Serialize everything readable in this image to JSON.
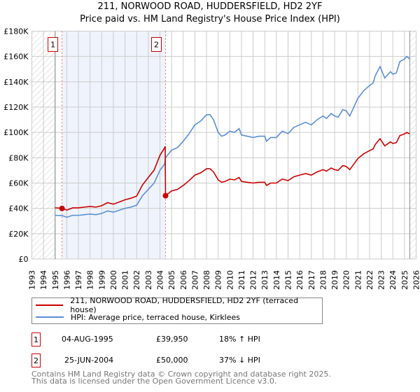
{
  "header": {
    "title": "211, NORWOOD ROAD, HUDDERSFIELD, HD2 2YF",
    "subtitle": "Price paid vs. HM Land Registry's House Price Index (HPI)"
  },
  "chart_data": {
    "type": "line",
    "title": "211, NORWOOD ROAD, HUDDERSFIELD, HD2 2YF",
    "subtitle": "Price paid vs. HM Land Registry's House Price Index (HPI)",
    "xlim": [
      1993,
      2026
    ],
    "ylim": [
      0,
      180000
    ],
    "x_ticks": [
      "1993",
      "1994",
      "1995",
      "1996",
      "1997",
      "1998",
      "1999",
      "2000",
      "2001",
      "2002",
      "2003",
      "2004",
      "2005",
      "2006",
      "2007",
      "2008",
      "2009",
      "2010",
      "2011",
      "2012",
      "2013",
      "2014",
      "2015",
      "2016",
      "2017",
      "2018",
      "2019",
      "2020",
      "2021",
      "2022",
      "2023",
      "2024",
      "2025",
      "2026"
    ],
    "y_ticks": [
      {
        "v": 0,
        "label": "£0"
      },
      {
        "v": 20000,
        "label": "£20K"
      },
      {
        "v": 40000,
        "label": "£40K"
      },
      {
        "v": 60000,
        "label": "£60K"
      },
      {
        "v": 80000,
        "label": "£80K"
      },
      {
        "v": 100000,
        "label": "£100K"
      },
      {
        "v": 120000,
        "label": "£120K"
      },
      {
        "v": 140000,
        "label": "£140K"
      },
      {
        "v": 160000,
        "label": "£160K"
      },
      {
        "v": 180000,
        "label": "£180K"
      }
    ],
    "grid": true,
    "shaded_ranges": [
      [
        1995.59,
        2004.48
      ]
    ],
    "hatched_ranges": [
      [
        1993,
        1995
      ],
      [
        2025.45,
        2026
      ]
    ],
    "series": [
      {
        "name": "211, NORWOOD ROAD, HUDDERSFIELD, HD2 2YF (terraced house)",
        "color": "#cc0000",
        "points": [
          [
            1995,
            40.4
          ],
          [
            1995.6,
            40.1
          ],
          [
            1996,
            38.6
          ],
          [
            1996.5,
            40.4
          ],
          [
            1997,
            40.4
          ],
          [
            1997.5,
            41
          ],
          [
            1998,
            41.5
          ],
          [
            1998.5,
            41
          ],
          [
            1999,
            42.1
          ],
          [
            1999.5,
            44.5
          ],
          [
            2000,
            43.3
          ],
          [
            2000.5,
            45
          ],
          [
            2001,
            46.8
          ],
          [
            2001.5,
            48
          ],
          [
            2002,
            49.7
          ],
          [
            2002.5,
            58.5
          ],
          [
            2003,
            64.4
          ],
          [
            2003.5,
            70.2
          ],
          [
            2004,
            81.9
          ],
          [
            2004.4,
            87.8
          ],
          [
            2004.45,
            89
          ],
          [
            2004.48,
            50
          ],
          [
            2005,
            53.8
          ],
          [
            2005.5,
            55
          ],
          [
            2006,
            58.1
          ],
          [
            2006.5,
            61.9
          ],
          [
            2007,
            66.3
          ],
          [
            2007.5,
            68.1
          ],
          [
            2008,
            71.3
          ],
          [
            2008.3,
            71.3
          ],
          [
            2008.6,
            68.8
          ],
          [
            2009,
            62.5
          ],
          [
            2009.3,
            60.6
          ],
          [
            2009.6,
            61.3
          ],
          [
            2010,
            63.1
          ],
          [
            2010.4,
            62.5
          ],
          [
            2010.8,
            64.4
          ],
          [
            2011,
            61.3
          ],
          [
            2011.5,
            60.6
          ],
          [
            2012,
            60
          ],
          [
            2012.5,
            60.6
          ],
          [
            2013,
            60.6
          ],
          [
            2013.15,
            58.1
          ],
          [
            2013.5,
            60
          ],
          [
            2014,
            60
          ],
          [
            2014.5,
            63.1
          ],
          [
            2015,
            61.9
          ],
          [
            2015.5,
            65
          ],
          [
            2016,
            66.3
          ],
          [
            2016.5,
            67.5
          ],
          [
            2017,
            66.3
          ],
          [
            2017.5,
            68.8
          ],
          [
            2018,
            70.6
          ],
          [
            2018.3,
            69.4
          ],
          [
            2018.7,
            71.9
          ],
          [
            2019,
            70.6
          ],
          [
            2019.3,
            70
          ],
          [
            2019.7,
            73.8
          ],
          [
            2020,
            73.1
          ],
          [
            2020.3,
            70.6
          ],
          [
            2020.7,
            75.6
          ],
          [
            2021,
            79.4
          ],
          [
            2021.5,
            83.1
          ],
          [
            2022,
            85.6
          ],
          [
            2022.3,
            86.9
          ],
          [
            2022.5,
            90.6
          ],
          [
            2022.9,
            95
          ],
          [
            2023.3,
            89.4
          ],
          [
            2023.8,
            92.5
          ],
          [
            2024,
            91.3
          ],
          [
            2024.3,
            91.9
          ],
          [
            2024.6,
            97.5
          ],
          [
            2025,
            98.8
          ],
          [
            2025.2,
            100
          ],
          [
            2025.45,
            98.8
          ]
        ]
      },
      {
        "name": "HPI: Average price, terraced house, Kirklees",
        "color": "#5b8fd4",
        "points": [
          [
            1995,
            34.5
          ],
          [
            1995.6,
            34.3
          ],
          [
            1996,
            33
          ],
          [
            1996.5,
            34.5
          ],
          [
            1997,
            34.5
          ],
          [
            1997.5,
            35
          ],
          [
            1998,
            35.5
          ],
          [
            1998.5,
            35
          ],
          [
            1999,
            36
          ],
          [
            1999.5,
            38
          ],
          [
            2000,
            37
          ],
          [
            2000.5,
            38.5
          ],
          [
            2001,
            40
          ],
          [
            2001.5,
            41
          ],
          [
            2002,
            42.5
          ],
          [
            2002.5,
            50
          ],
          [
            2003,
            55
          ],
          [
            2003.5,
            60
          ],
          [
            2004,
            70
          ],
          [
            2004.4,
            75
          ],
          [
            2004.48,
            80
          ],
          [
            2005,
            86
          ],
          [
            2005.5,
            88
          ],
          [
            2006,
            93
          ],
          [
            2006.5,
            99
          ],
          [
            2007,
            106
          ],
          [
            2007.5,
            109
          ],
          [
            2008,
            114
          ],
          [
            2008.3,
            114
          ],
          [
            2008.6,
            110
          ],
          [
            2009,
            100
          ],
          [
            2009.3,
            97
          ],
          [
            2009.6,
            98
          ],
          [
            2010,
            101
          ],
          [
            2010.4,
            100
          ],
          [
            2010.8,
            103
          ],
          [
            2011,
            98
          ],
          [
            2011.5,
            97
          ],
          [
            2012,
            96
          ],
          [
            2012.5,
            97
          ],
          [
            2013,
            97
          ],
          [
            2013.15,
            93
          ],
          [
            2013.5,
            96
          ],
          [
            2014,
            96
          ],
          [
            2014.5,
            101
          ],
          [
            2015,
            99
          ],
          [
            2015.5,
            104
          ],
          [
            2016,
            106
          ],
          [
            2016.5,
            108
          ],
          [
            2017,
            106
          ],
          [
            2017.5,
            110
          ],
          [
            2018,
            113
          ],
          [
            2018.3,
            111
          ],
          [
            2018.7,
            115
          ],
          [
            2019,
            113
          ],
          [
            2019.3,
            112
          ],
          [
            2019.7,
            118
          ],
          [
            2020,
            117
          ],
          [
            2020.3,
            113
          ],
          [
            2020.7,
            121
          ],
          [
            2021,
            127
          ],
          [
            2021.5,
            133
          ],
          [
            2022,
            137
          ],
          [
            2022.3,
            139
          ],
          [
            2022.5,
            145
          ],
          [
            2022.9,
            152
          ],
          [
            2023.3,
            143
          ],
          [
            2023.8,
            148
          ],
          [
            2024,
            146
          ],
          [
            2024.3,
            147
          ],
          [
            2024.6,
            156
          ],
          [
            2025,
            158
          ],
          [
            2025.2,
            160
          ],
          [
            2025.45,
            158
          ]
        ]
      }
    ],
    "y_unit_multiplier": 1000,
    "annotations": [
      {
        "label": "1",
        "x": 1995.59,
        "y": 39950
      },
      {
        "label": "2",
        "x": 2004.48,
        "y": 50000
      }
    ]
  },
  "legend": {
    "items": [
      {
        "label": "211, NORWOOD ROAD, HUDDERSFIELD, HD2 2YF (terraced house)",
        "color": "#cc0000"
      },
      {
        "label": "HPI: Average price, terraced house, Kirklees",
        "color": "#5b8fd4"
      }
    ]
  },
  "sales": [
    {
      "num": "1",
      "date": "04-AUG-1995",
      "price": "£39,950",
      "hpi": "18% ↑ HPI"
    },
    {
      "num": "2",
      "date": "25-JUN-2004",
      "price": "£50,000",
      "hpi": "37% ↓ HPI"
    }
  ],
  "footer": {
    "line1": "Contains HM Land Registry data © Crown copyright and database right 2025.",
    "line2": "This data is licensed under the Open Government Licence v3.0."
  }
}
